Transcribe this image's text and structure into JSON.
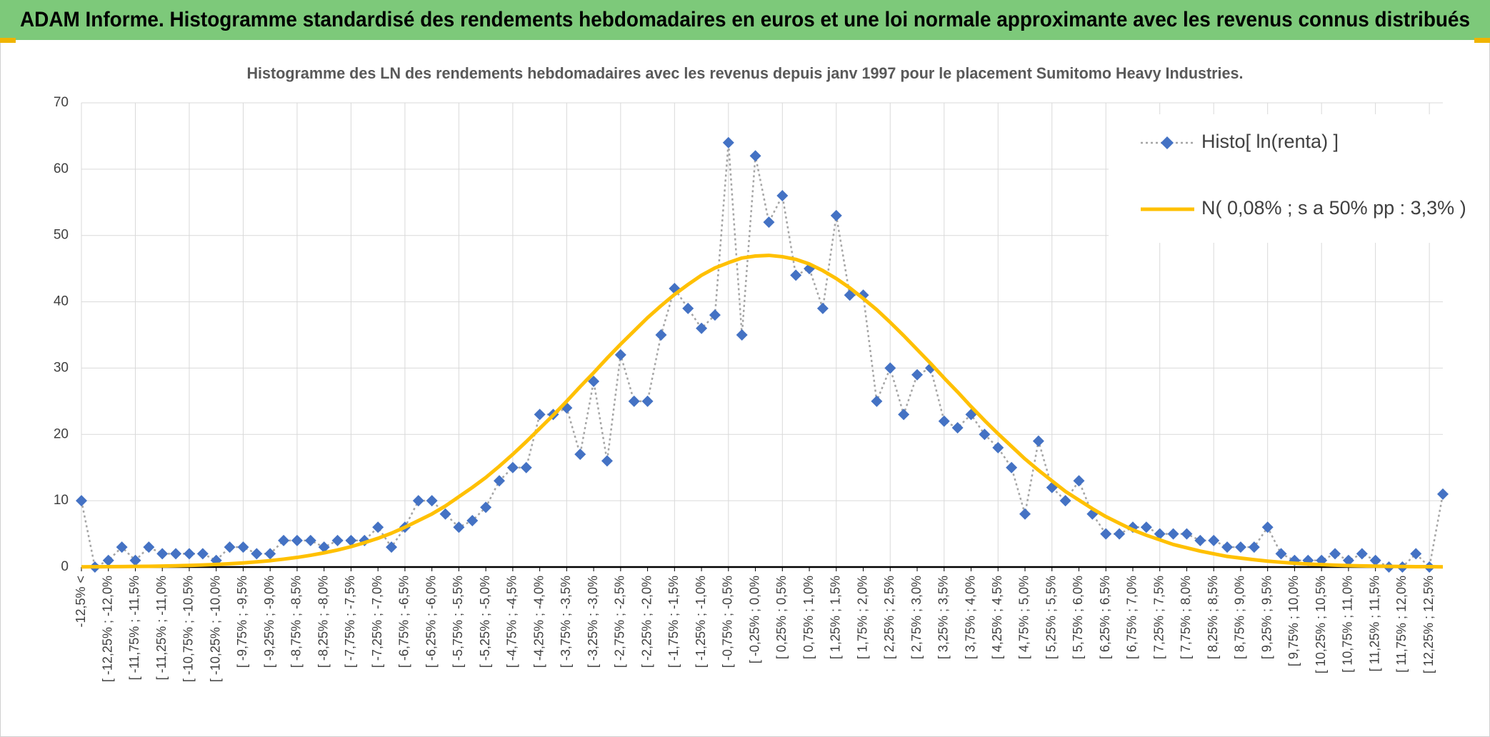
{
  "header": {
    "title": "ADAM Informe. Histogramme standardisé des rendements hebdomadaires en euros et une loi normale approximante avec les revenus connus distribués"
  },
  "chart_data": {
    "type": "line",
    "title": "Histogramme des LN des rendements hebdomadaires avec les revenus depuis janv 1997 pour le placement Sumitomo Heavy Industries.",
    "categories": [
      "-12,5% <",
      null,
      "[ -12,25% ; -12,0%",
      null,
      "[ -11,75% ; -11,5%",
      null,
      "[ -11,25% ; -11,0%",
      null,
      "[ -10,75% ; -10,5%",
      null,
      "[ -10,25% ; -10,0%",
      null,
      "[ -9,75% ; -9,5%",
      null,
      "[ -9,25% ; -9,0%",
      null,
      "[ -8,75% ; -8,5%",
      null,
      "[ -8,25% ; -8,0%",
      null,
      "[ -7,75% ; -7,5%",
      null,
      "[ -7,25% ; -7,0%",
      null,
      "[ -6,75% ; -6,5%",
      null,
      "[ -6,25% ; -6,0%",
      null,
      "[ -5,75% ; -5,5%",
      null,
      "[ -5,25% ; -5,0%",
      null,
      "[ -4,75% ; -4,5%",
      null,
      "[ -4,25% ; -4,0%",
      null,
      "[ -3,75% ; -3,5%",
      null,
      "[ -3,25% ; -3,0%",
      null,
      "[ -2,75% ; -2,5%",
      null,
      "[ -2,25% ; -2,0%",
      null,
      "[ -1,75% ; -1,5%",
      null,
      "[ -1,25% ; -1,0%",
      null,
      "[ -0,75% ; -0,5%",
      null,
      "[ -0,25% ; 0,0%",
      null,
      "[ 0,25% ; 0,5%",
      null,
      "[ 0,75% ; 1,0%",
      null,
      "[ 1,25% ; 1,5%",
      null,
      "[ 1,75% ; 2,0%",
      null,
      "[ 2,25% ; 2,5%",
      null,
      "[ 2,75% ; 3,0%",
      null,
      "[ 3,25% ; 3,5%",
      null,
      "[ 3,75% ; 4,0%",
      null,
      "[ 4,25% ; 4,5%",
      null,
      "[ 4,75% ; 5,0%",
      null,
      "[ 5,25% ; 5,5%",
      null,
      "[ 5,75% ; 6,0%",
      null,
      "[ 6,25% ; 6,5%",
      null,
      "[ 6,75% ; 7,0%",
      null,
      "[ 7,25% ; 7,5%",
      null,
      "[ 7,75% ; 8,0%",
      null,
      "[ 8,25% ; 8,5%",
      null,
      "[ 8,75% ; 9,0%",
      null,
      "[ 9,25% ; 9,5%",
      null,
      "[ 9,75% ; 10,0%",
      null,
      "[ 10,25% ; 10,5%",
      null,
      "[ 10,75% ; 11,0%",
      null,
      "[ 11,25% ; 11,5%",
      null,
      "[ 11,75% ; 12,0%",
      null,
      "[ 12,25% ; 12,5%",
      null
    ],
    "series": [
      {
        "name": "Histo[ ln(renta) ]",
        "color": "#4472c4",
        "line_color": "#a5a5a5",
        "line_style": "dotted",
        "marker": "diamond",
        "values": [
          10,
          0,
          1,
          3,
          1,
          3,
          2,
          2,
          2,
          2,
          1,
          3,
          3,
          2,
          2,
          4,
          4,
          4,
          3,
          4,
          4,
          4,
          6,
          3,
          6,
          10,
          10,
          8,
          6,
          7,
          9,
          13,
          15,
          15,
          23,
          23,
          24,
          17,
          28,
          16,
          32,
          25,
          25,
          35,
          42,
          39,
          36,
          38,
          64,
          35,
          62,
          52,
          56,
          44,
          45,
          39,
          53,
          41,
          41,
          25,
          30,
          23,
          29,
          30,
          22,
          21,
          23,
          20,
          18,
          15,
          8,
          19,
          12,
          10,
          13,
          8,
          5,
          5,
          6,
          6,
          5,
          5,
          5,
          4,
          4,
          3,
          3,
          3,
          6,
          2,
          1,
          1,
          1,
          2,
          1,
          2,
          1,
          0,
          0,
          2,
          0,
          11
        ]
      },
      {
        "name": "N( 0,08% ; s a 50% pp : 3,3% )",
        "color": "#ffc000",
        "line_style": "solid",
        "values": [
          0.03,
          0.04,
          0.05,
          0.07,
          0.09,
          0.11,
          0.15,
          0.19,
          0.24,
          0.31,
          0.39,
          0.5,
          0.62,
          0.78,
          0.96,
          1.19,
          1.45,
          1.77,
          2.14,
          2.57,
          3.07,
          3.67,
          4.33,
          5.1,
          6.0,
          7.0,
          8.0,
          9.2,
          10.6,
          12.0,
          13.5,
          15.2,
          17.0,
          18.9,
          20.9,
          22.9,
          25.0,
          27.2,
          29.3,
          31.5,
          33.6,
          35.6,
          37.6,
          39.4,
          41.1,
          42.6,
          44.0,
          45.1,
          45.9,
          46.6,
          46.9,
          47.0,
          46.8,
          46.4,
          45.7,
          44.7,
          43.5,
          42.1,
          40.5,
          38.8,
          36.9,
          34.9,
          32.8,
          30.7,
          28.5,
          26.4,
          24.2,
          22.1,
          20.1,
          18.2,
          16.3,
          14.6,
          13.0,
          11.4,
          10.1,
          8.8,
          7.6,
          6.6,
          5.6,
          4.8,
          4.1,
          3.4,
          2.9,
          2.4,
          2.0,
          1.6,
          1.35,
          1.1,
          0.89,
          0.72,
          0.57,
          0.46,
          0.36,
          0.28,
          0.22,
          0.17,
          0.13,
          0.1,
          0.08,
          0.06,
          0.05,
          0.03
        ]
      }
    ],
    "ylim": [
      0,
      70
    ],
    "yticks": [
      0,
      10,
      20,
      30,
      40,
      50,
      60,
      70
    ],
    "grid": true,
    "legend": "top-right"
  }
}
